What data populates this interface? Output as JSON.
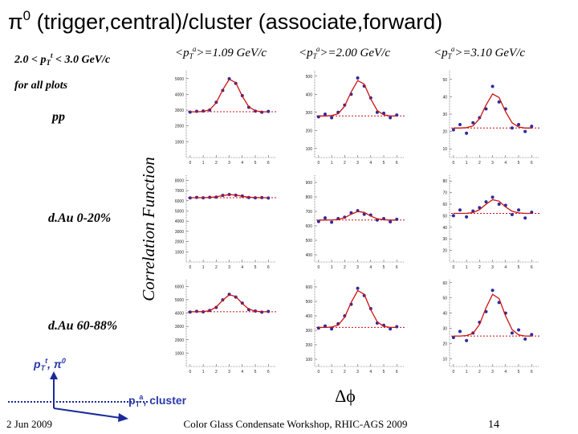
{
  "header": {
    "title": "π",
    "title_sup": "0",
    "title_rest": " (trigger,central)/cluster (associate,forward)"
  },
  "cut": {
    "pre": "2.0 < p",
    "sub": "T",
    "sup": "t",
    "post": " < 3.0 GeV/c"
  },
  "cut_note": "for all plots",
  "columns": [
    {
      "pre": "<p",
      "sub": "T",
      "sup": "a",
      "post": ">=1.09 GeV/c"
    },
    {
      "pre": "<p",
      "sub": "T",
      "sup": "a",
      "post": ">=2.00 GeV/c"
    },
    {
      "pre": "<p",
      "sub": "T",
      "sup": "a",
      "post": ">=3.10 GeV/c"
    }
  ],
  "rows": [
    "pp",
    "d.Au 0-20%",
    "d.Au 60-88%"
  ],
  "y_label": "Correlation Function",
  "x_label": "Δϕ",
  "diagram": {
    "trigger": {
      "pre": "p",
      "sub": "T",
      "sup": "t",
      "post": ", π",
      "post_sup": "0"
    },
    "associate": {
      "pre": "p",
      "sub": "T",
      "sup": "a",
      "post": ", cluster"
    }
  },
  "footer": {
    "date": "2 Jun 2009",
    "event": "Color Glass Condensate Workshop, RHIC-AGS 2009",
    "page": "14"
  },
  "chart_data": [
    {
      "type": "scatter",
      "x": [
        0,
        0.5,
        1,
        1.5,
        2,
        2.5,
        3,
        3.5,
        4,
        4.5,
        5,
        5.5,
        6
      ],
      "series": [
        {
          "color": "#2b2b9e",
          "style": "markers",
          "values": [
            2880,
            2930,
            2950,
            3010,
            3500,
            4250,
            4990,
            4700,
            3920,
            3180,
            2940,
            2870,
            2920
          ]
        },
        {
          "color": "#cc1111",
          "style": "line",
          "values": [
            2900,
            2900,
            2921,
            3026,
            3467,
            4286,
            4958,
            4748,
            3887,
            3215,
            2963,
            2900,
            2900
          ]
        }
      ],
      "baseline": 2900,
      "xlim": [
        -0.3,
        6.6
      ],
      "xticks": [
        0,
        1,
        2,
        3,
        4,
        5,
        6
      ],
      "ylim": [
        0,
        5500
      ],
      "yticks": [
        1000,
        2000,
        3000,
        4000,
        5000
      ]
    },
    {
      "type": "scatter",
      "x": [
        0,
        0.5,
        1,
        1.5,
        2,
        2.5,
        3,
        3.5,
        4,
        4.5,
        5,
        5.5,
        6
      ],
      "series": [
        {
          "color": "#2b2b9e",
          "style": "markers",
          "values": [
            275,
            290,
            270,
            300,
            340,
            400,
            490,
            445,
            380,
            300,
            295,
            270,
            285
          ]
        },
        {
          "color": "#cc1111",
          "style": "line",
          "values": [
            280,
            280,
            282,
            292,
            334,
            412,
            476,
            456,
            374,
            310,
            286,
            280,
            280
          ]
        }
      ],
      "baseline": 280,
      "xlim": [
        -0.3,
        6.6
      ],
      "xticks": [
        0,
        1,
        2,
        3,
        4,
        5,
        6
      ],
      "ylim": [
        50,
        530
      ],
      "yticks": [
        100,
        200,
        300,
        400,
        500
      ]
    },
    {
      "type": "scatter",
      "x": [
        0,
        0.5,
        1,
        1.5,
        2,
        2.5,
        3,
        3.5,
        4,
        4.5,
        5,
        5.5,
        6
      ],
      "series": [
        {
          "color": "#2b2b9e",
          "style": "markers",
          "values": [
            21,
            24,
            19,
            25,
            28,
            33,
            46,
            37,
            33,
            22,
            24,
            20,
            23
          ]
        },
        {
          "color": "#cc1111",
          "style": "line",
          "values": [
            22,
            22,
            22.2,
            23.2,
            27.4,
            35.2,
            41.6,
            39.6,
            31.4,
            25,
            22.6,
            22,
            22
          ]
        }
      ],
      "baseline": 22,
      "xlim": [
        -0.3,
        6.6
      ],
      "xticks": [
        0,
        1,
        2,
        3,
        4,
        5,
        6
      ],
      "ylim": [
        5,
        55
      ],
      "yticks": [
        10,
        20,
        30,
        40,
        50
      ]
    },
    {
      "type": "scatter",
      "x": [
        0,
        0.5,
        1,
        1.5,
        2,
        2.5,
        3,
        3.5,
        4,
        4.5,
        5,
        5.5,
        6
      ],
      "series": [
        {
          "color": "#2b2b9e",
          "style": "markers",
          "values": [
            6280,
            6330,
            6290,
            6340,
            6360,
            6520,
            6610,
            6540,
            6460,
            6320,
            6290,
            6310,
            6270
          ]
        },
        {
          "color": "#cc1111",
          "style": "line",
          "values": [
            6300,
            6300,
            6303,
            6318,
            6381,
            6498,
            6594,
            6564,
            6441,
            6345,
            6309,
            6300,
            6300
          ]
        }
      ],
      "baseline": 6300,
      "xlim": [
        -0.3,
        6.6
      ],
      "xticks": [
        0,
        1,
        2,
        3,
        4,
        5,
        6
      ],
      "ylim": [
        0,
        8500
      ],
      "yticks": [
        1000,
        2000,
        3000,
        4000,
        5000,
        6000,
        7000,
        8000
      ]
    },
    {
      "type": "scatter",
      "x": [
        0,
        0.5,
        1,
        1.5,
        2,
        2.5,
        3,
        3.5,
        4,
        4.5,
        5,
        5.5,
        6
      ],
      "series": [
        {
          "color": "#2b2b9e",
          "style": "markers",
          "values": [
            630,
            655,
            625,
            650,
            660,
            690,
            705,
            680,
            675,
            640,
            650,
            628,
            645
          ]
        },
        {
          "color": "#cc1111",
          "style": "line",
          "values": [
            640,
            640,
            641,
            644,
            656,
            680,
            699,
            693,
            668,
            649,
            642,
            640,
            640
          ]
        }
      ],
      "baseline": 640,
      "xlim": [
        -0.3,
        6.6
      ],
      "xticks": [
        0,
        1,
        2,
        3,
        4,
        5,
        6
      ],
      "ylim": [
        350,
        950
      ],
      "yticks": [
        400,
        500,
        600,
        700,
        800,
        900
      ]
    },
    {
      "type": "scatter",
      "x": [
        0,
        0.5,
        1,
        1.5,
        2,
        2.5,
        3,
        3.5,
        4,
        4.5,
        5,
        5.5,
        6
      ],
      "series": [
        {
          "color": "#2b2b9e",
          "style": "markers",
          "values": [
            50,
            55,
            49,
            54,
            57,
            62,
            66,
            60,
            59,
            51,
            55,
            48,
            53
          ]
        },
        {
          "color": "#cc1111",
          "style": "line",
          "values": [
            52,
            52,
            52.1,
            52.7,
            55.2,
            59.9,
            63.8,
            62.6,
            57.6,
            53.8,
            52.4,
            52,
            52
          ]
        }
      ],
      "baseline": 52,
      "xlim": [
        -0.3,
        6.6
      ],
      "xticks": [
        0,
        1,
        2,
        3,
        4,
        5,
        6
      ],
      "ylim": [
        10,
        85
      ],
      "yticks": [
        20,
        30,
        40,
        50,
        60,
        70,
        80
      ]
    },
    {
      "type": "scatter",
      "x": [
        0,
        0.5,
        1,
        1.5,
        2,
        2.5,
        3,
        3.5,
        4,
        4.5,
        5,
        5.5,
        6
      ],
      "series": [
        {
          "color": "#2b2b9e",
          "style": "markers",
          "values": [
            4080,
            4130,
            4090,
            4200,
            4420,
            4990,
            5400,
            5200,
            4750,
            4260,
            4150,
            4070,
            4120
          ]
        },
        {
          "color": "#cc1111",
          "style": "line",
          "values": [
            4100,
            4100,
            4113,
            4178,
            4451,
            4958,
            5374,
            5244,
            4711,
            4295,
            4139,
            4100,
            4100
          ]
        }
      ],
      "baseline": 4100,
      "xlim": [
        -0.3,
        6.6
      ],
      "xticks": [
        0,
        1,
        2,
        3,
        4,
        5,
        6
      ],
      "ylim": [
        0,
        6500
      ],
      "yticks": [
        1000,
        2000,
        3000,
        4000,
        5000,
        6000
      ]
    },
    {
      "type": "scatter",
      "x": [
        0,
        0.5,
        1,
        1.5,
        2,
        2.5,
        3,
        3.5,
        4,
        4.5,
        5,
        5.5,
        6
      ],
      "series": [
        {
          "color": "#2b2b9e",
          "style": "markers",
          "values": [
            315,
            330,
            310,
            345,
            400,
            480,
            590,
            540,
            450,
            350,
            335,
            310,
            325
          ]
        },
        {
          "color": "#cc1111",
          "style": "line",
          "values": [
            320,
            320,
            323,
            336,
            390,
            492,
            575,
            549,
            442,
            359,
            328,
            320,
            320
          ]
        }
      ],
      "baseline": 320,
      "xlim": [
        -0.3,
        6.6
      ],
      "xticks": [
        0,
        1,
        2,
        3,
        4,
        5,
        6
      ],
      "ylim": [
        50,
        650
      ],
      "yticks": [
        100,
        200,
        300,
        400,
        500,
        600
      ]
    },
    {
      "type": "scatter",
      "x": [
        0,
        0.5,
        1,
        1.5,
        2,
        2.5,
        3,
        3.5,
        4,
        4.5,
        5,
        5.5,
        6
      ],
      "series": [
        {
          "color": "#2b2b9e",
          "style": "markers",
          "values": [
            24,
            28,
            22,
            27,
            34,
            41,
            55,
            47,
            40,
            27,
            29,
            23,
            26
          ]
        },
        {
          "color": "#cc1111",
          "style": "line",
          "values": [
            25,
            25,
            25.3,
            26.7,
            32.6,
            43.5,
            52.4,
            49.6,
            38.2,
            29.2,
            25.8,
            25,
            25
          ]
        }
      ],
      "baseline": 25,
      "xlim": [
        -0.3,
        6.6
      ],
      "xticks": [
        0,
        1,
        2,
        3,
        4,
        5,
        6
      ],
      "ylim": [
        5,
        62
      ],
      "yticks": [
        10,
        20,
        30,
        40,
        50,
        60
      ]
    }
  ]
}
